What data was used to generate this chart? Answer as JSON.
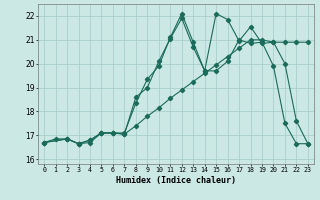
{
  "xlabel": "Humidex (Indice chaleur)",
  "background_color": "#cce8e4",
  "grid_color": "#aacfcb",
  "line_color": "#1a6b5a",
  "xlim": [
    -0.5,
    23.5
  ],
  "ylim": [
    15.8,
    22.5
  ],
  "xticks": [
    0,
    1,
    2,
    3,
    4,
    5,
    6,
    7,
    8,
    9,
    10,
    11,
    12,
    13,
    14,
    15,
    16,
    17,
    18,
    19,
    20,
    21,
    22,
    23
  ],
  "yticks": [
    16,
    17,
    18,
    19,
    20,
    21,
    22
  ],
  "series1_x": [
    0,
    1,
    2,
    3,
    4,
    5,
    6,
    7,
    8,
    9,
    10,
    11,
    12,
    13,
    14,
    15,
    16,
    17,
    18,
    19,
    20,
    21,
    22,
    23
  ],
  "series1_y": [
    16.7,
    16.85,
    16.85,
    16.65,
    16.7,
    17.1,
    17.1,
    17.05,
    17.4,
    17.8,
    18.15,
    18.55,
    18.9,
    19.25,
    19.6,
    19.95,
    20.3,
    20.65,
    21.0,
    21.0,
    20.9,
    20.9,
    20.9,
    20.9
  ],
  "series2_x": [
    0,
    2,
    3,
    4,
    5,
    6,
    7,
    8,
    9,
    10,
    11,
    12,
    13,
    14,
    15,
    16,
    17,
    18,
    19,
    20,
    21,
    22,
    23
  ],
  "series2_y": [
    16.7,
    16.85,
    16.65,
    16.8,
    17.1,
    17.1,
    17.1,
    18.35,
    19.35,
    19.9,
    21.1,
    22.1,
    20.9,
    19.7,
    19.7,
    20.1,
    21.0,
    20.85,
    20.9,
    19.9,
    17.5,
    16.65,
    16.65
  ],
  "series3_x": [
    0,
    2,
    3,
    4,
    5,
    6,
    7,
    8,
    9,
    10,
    11,
    12,
    13,
    14,
    15,
    16,
    17,
    18,
    19,
    20,
    21,
    22,
    23
  ],
  "series3_y": [
    16.7,
    16.85,
    16.65,
    16.8,
    17.1,
    17.1,
    17.05,
    18.6,
    19.0,
    20.1,
    21.05,
    21.9,
    20.7,
    19.7,
    22.1,
    21.85,
    20.95,
    21.55,
    20.85,
    20.9,
    20.0,
    17.6,
    16.65
  ]
}
